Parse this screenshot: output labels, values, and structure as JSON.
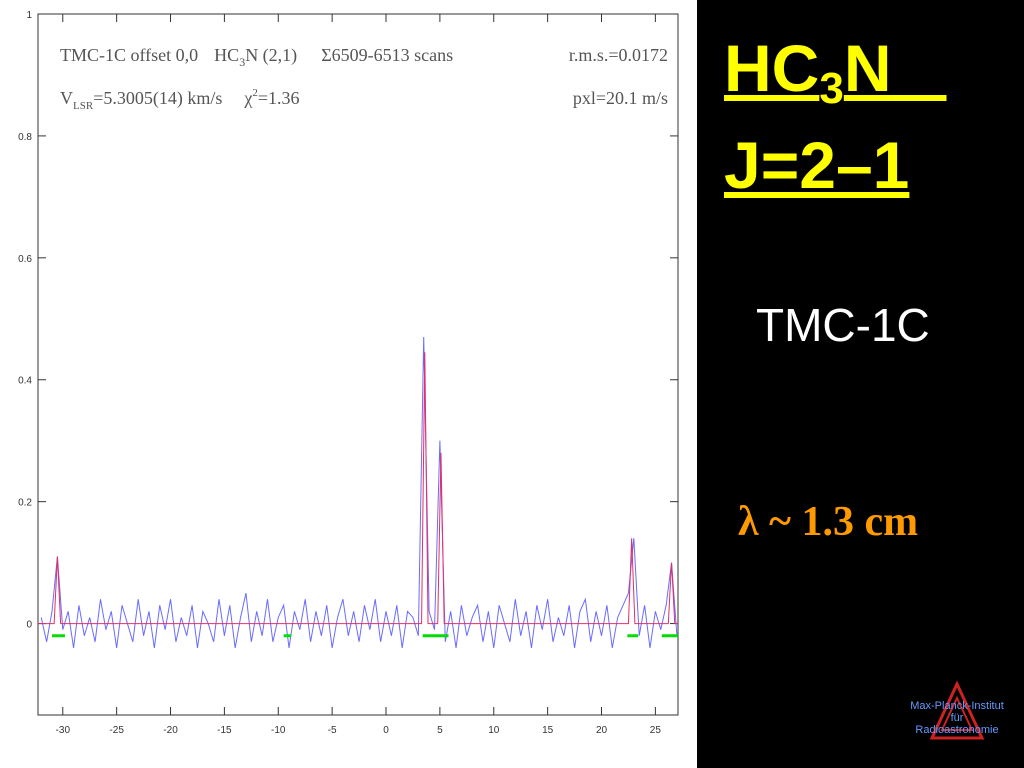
{
  "chart_data": {
    "type": "line",
    "header": [
      "TMC-1C offset 0,0",
      "HC",
      "3",
      "N (2,1)",
      "Σ6509-6513 scans",
      "r.m.s.=0.0172",
      "V",
      "LSR",
      "=5.3005(14) km/s",
      "χ",
      "2",
      "=1.36",
      "pxl=20.1 m/s"
    ],
    "xlim": [
      -32.3,
      27.1
    ],
    "ylim": [
      -0.15,
      1
    ],
    "xticks": [
      -30,
      -25,
      -20,
      -15,
      -10,
      -5,
      0,
      5,
      10,
      15,
      20,
      25
    ],
    "yticks": [
      0,
      0.2,
      0.4,
      0.6,
      0.8,
      1
    ],
    "series": [
      {
        "color": "#6b6bff",
        "x": [
          -32,
          -31.5,
          -31,
          -30.5,
          -30,
          -29.5,
          -29,
          -28.5,
          -28,
          -27.5,
          -27,
          -26.5,
          -26,
          -25.5,
          -25,
          -24.5,
          -24,
          -23.5,
          -23,
          -22.5,
          -22,
          -21.5,
          -21,
          -20.5,
          -20,
          -19.5,
          -19,
          -18.5,
          -18,
          -17.5,
          -17,
          -16.5,
          -16,
          -15.5,
          -15,
          -14.5,
          -14,
          -13.5,
          -13,
          -12.5,
          -12,
          -11.5,
          -11,
          -10.5,
          -10,
          -9.5,
          -9,
          -8.5,
          -8,
          -7.5,
          -7,
          -6.5,
          -6,
          -5.5,
          -5,
          -4.5,
          -4,
          -3.5,
          -3,
          -2.5,
          -2,
          -1.5,
          -1,
          -0.5,
          0,
          0.5,
          1,
          1.5,
          2,
          2.5,
          3,
          3.5,
          4,
          4.5,
          5,
          5.5,
          6,
          6.5,
          7,
          7.5,
          8,
          8.5,
          9,
          9.5,
          10,
          10.5,
          11,
          11.5,
          12,
          12.5,
          13,
          13.5,
          14,
          14.5,
          15,
          15.5,
          16,
          16.5,
          17,
          17.5,
          18,
          18.5,
          19,
          19.5,
          20,
          20.5,
          21,
          21.5,
          22,
          22.5,
          23,
          23.5,
          24,
          24.5,
          25,
          25.5,
          26,
          26.5,
          27
        ],
        "values": [
          0.01,
          -0.03,
          0.02,
          0.11,
          -0.01,
          0.02,
          -0.04,
          0.03,
          -0.02,
          0.01,
          -0.03,
          0.04,
          -0.01,
          0.02,
          -0.04,
          0.03,
          0,
          -0.03,
          0.04,
          -0.02,
          0.02,
          -0.04,
          0.03,
          -0.01,
          0.04,
          -0.03,
          0.01,
          -0.02,
          0.03,
          -0.04,
          0.02,
          0,
          -0.03,
          0.04,
          -0.02,
          0.03,
          -0.04,
          0.01,
          0.05,
          -0.03,
          0.02,
          -0.02,
          0.04,
          -0.03,
          0.01,
          0.03,
          -0.04,
          0.02,
          -0.01,
          0.04,
          -0.03,
          0.02,
          -0.02,
          0.03,
          -0.04,
          0.01,
          0.04,
          -0.02,
          0.02,
          -0.03,
          0.03,
          -0.01,
          0.04,
          -0.03,
          0.02,
          -0.02,
          0.03,
          -0.04,
          0.02,
          0.01,
          -0.02,
          0.47,
          0.02,
          -0.01,
          0.3,
          -0.03,
          0.02,
          -0.04,
          0.03,
          -0.02,
          0.01,
          0.03,
          -0.03,
          0.02,
          -0.04,
          0.03,
          0,
          -0.03,
          0.04,
          -0.02,
          0.02,
          -0.04,
          0.03,
          -0.01,
          0.04,
          -0.03,
          0.01,
          -0.02,
          0.03,
          -0.04,
          0.02,
          0.04,
          -0.03,
          0.02,
          -0.02,
          0.03,
          -0.04,
          0.01,
          0.03,
          0.05,
          0.14,
          -0.02,
          0.03,
          -0.04,
          0.02,
          -0.01,
          0.03,
          0.1,
          -0.02
        ]
      },
      {
        "color": "#e0306a",
        "x": [
          -32.3,
          -30.8,
          -30.5,
          -30.2,
          3.3,
          3.6,
          3.9,
          4.8,
          5.1,
          5.4,
          22.5,
          22.8,
          23.1,
          26.2,
          26.5,
          26.8,
          27.1
        ],
        "values": [
          0,
          0,
          0.11,
          0,
          0,
          0.445,
          0,
          0,
          0.28,
          0,
          0,
          0.14,
          0,
          0,
          0.1,
          0,
          0
        ]
      }
    ],
    "window_level": -0.02,
    "window_color": "#00dd00",
    "windows": [
      [
        -31,
        -29.8
      ],
      [
        -9.5,
        -8.8
      ],
      [
        3.4,
        5.8
      ],
      [
        22.4,
        23.4
      ],
      [
        25.6,
        27.1
      ]
    ]
  },
  "slide": {
    "title": [
      "HC",
      "3",
      "N"
    ],
    "transition": "J=2–1",
    "source": "TMC-1C",
    "wavelength": "λ ~ 1.3 cm",
    "logo": [
      "Max-Planck-Institut",
      "für",
      "Radioastronomie"
    ]
  }
}
